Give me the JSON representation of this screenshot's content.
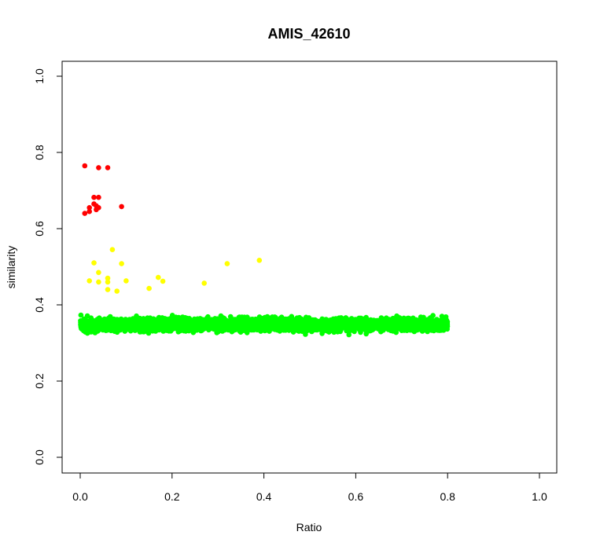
{
  "chart_data": {
    "type": "scatter",
    "title": "AMIS_42610",
    "xlabel": "Ratio",
    "ylabel": "similarity",
    "xlim": [
      0.0,
      1.0
    ],
    "ylim": [
      0.0,
      1.0
    ],
    "x_ticks": [
      "0.0",
      "0.2",
      "0.4",
      "0.6",
      "0.8",
      "1.0"
    ],
    "y_ticks": [
      "0.0",
      "0.2",
      "0.4",
      "0.6",
      "0.8",
      "1.0"
    ],
    "grid": false,
    "legend": "none",
    "colors": {
      "high": "#ff0000",
      "medium": "#ffff00",
      "low": "#00ff00"
    },
    "series": [
      {
        "color": "#ff0000",
        "points": [
          [
            0.01,
            0.765
          ],
          [
            0.04,
            0.76
          ],
          [
            0.06,
            0.76
          ],
          [
            0.03,
            0.682
          ],
          [
            0.04,
            0.682
          ],
          [
            0.03,
            0.665
          ],
          [
            0.035,
            0.66
          ],
          [
            0.02,
            0.655
          ],
          [
            0.04,
            0.655
          ],
          [
            0.035,
            0.65
          ],
          [
            0.09,
            0.658
          ],
          [
            0.01,
            0.64
          ],
          [
            0.02,
            0.645
          ]
        ]
      },
      {
        "color": "#ffff00",
        "points": [
          [
            0.07,
            0.545
          ],
          [
            0.03,
            0.51
          ],
          [
            0.09,
            0.508
          ],
          [
            0.32,
            0.508
          ],
          [
            0.39,
            0.517
          ],
          [
            0.04,
            0.485
          ],
          [
            0.06,
            0.47
          ],
          [
            0.17,
            0.472
          ],
          [
            0.02,
            0.463
          ],
          [
            0.04,
            0.46
          ],
          [
            0.06,
            0.46
          ],
          [
            0.1,
            0.463
          ],
          [
            0.18,
            0.462
          ],
          [
            0.27,
            0.457
          ],
          [
            0.06,
            0.44
          ],
          [
            0.08,
            0.436
          ],
          [
            0.15,
            0.443
          ]
        ]
      },
      {
        "color": "#00ff00",
        "band": {
          "x_range": [
            0.0,
            0.8
          ],
          "y_center": 0.348,
          "y_spread": 0.03,
          "y_min": 0.3,
          "y_max": 0.4,
          "count": 3000
        }
      }
    ]
  }
}
